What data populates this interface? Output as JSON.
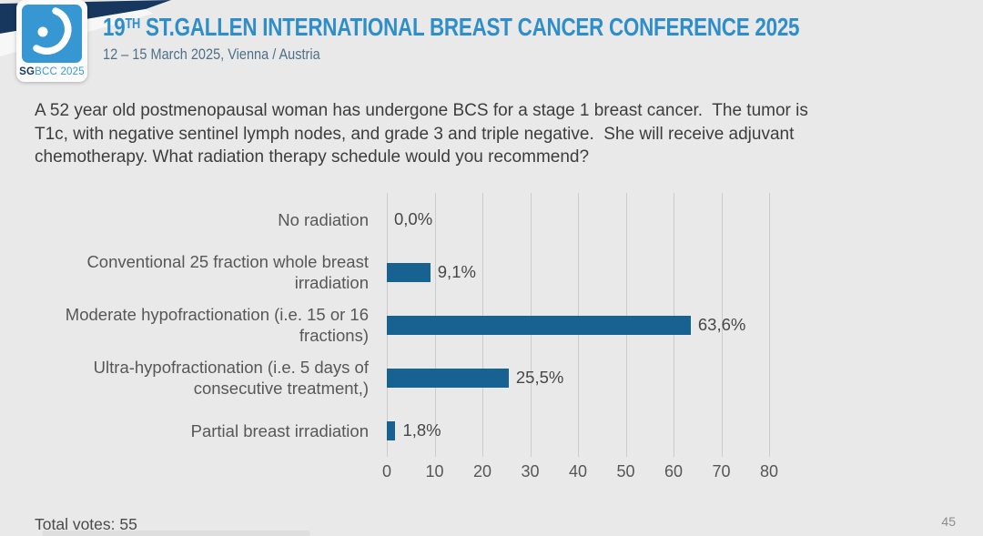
{
  "header": {
    "logo": {
      "caption_bold": "SG",
      "caption_rest": "BCC 2025"
    },
    "title_num": "19",
    "title_sup": "TH",
    "title_rest": " ST.GALLEN INTERNATIONAL BREAST CANCER CONFERENCE 2025",
    "subtitle": "12 – 15 March 2025, Vienna / Austria"
  },
  "question_lines": {
    "line1": "A 52 year old postmenopausal woman has undergone BCS for a stage 1 breast cancer.  The tumor is",
    "line2": "T1c, with negative sentinel lymph nodes, and grade 3 and triple negative.  She will receive adjuvant",
    "line3": "chemotherapy. What radiation therapy schedule would you recommend?"
  },
  "chart_data": {
    "type": "bar",
    "orientation": "horizontal",
    "categories": [
      "No radiation",
      "Conventional 25 fraction whole breast irradiation",
      "Moderate hypofractionation (i.e. 15 or 16 fractions)",
      "Ultra-hypofractionation (i.e. 5 days of consecutive treatment,)",
      "Partial breast irradiation"
    ],
    "values": [
      0.0,
      9.1,
      63.6,
      25.5,
      1.8
    ],
    "value_labels": [
      "0,0%",
      "9,1%",
      "63,6%",
      "25,5%",
      "1,8%"
    ],
    "xticks": [
      0,
      10,
      20,
      30,
      40,
      50,
      60,
      70,
      80
    ],
    "xlim": [
      0,
      80
    ],
    "grid": true,
    "legend": "none",
    "bar_color": "#176291"
  },
  "footer": {
    "total_votes": "Total votes: 55",
    "page_number": "45"
  },
  "colors": {
    "background": "#e9e9e9",
    "title_blue": "#2e8ec9",
    "navy": "#17375e",
    "logo_blue": "#3697d3",
    "bar_blue": "#176291",
    "question_text": "#3d3d3d",
    "gridline": "#cccccc"
  }
}
